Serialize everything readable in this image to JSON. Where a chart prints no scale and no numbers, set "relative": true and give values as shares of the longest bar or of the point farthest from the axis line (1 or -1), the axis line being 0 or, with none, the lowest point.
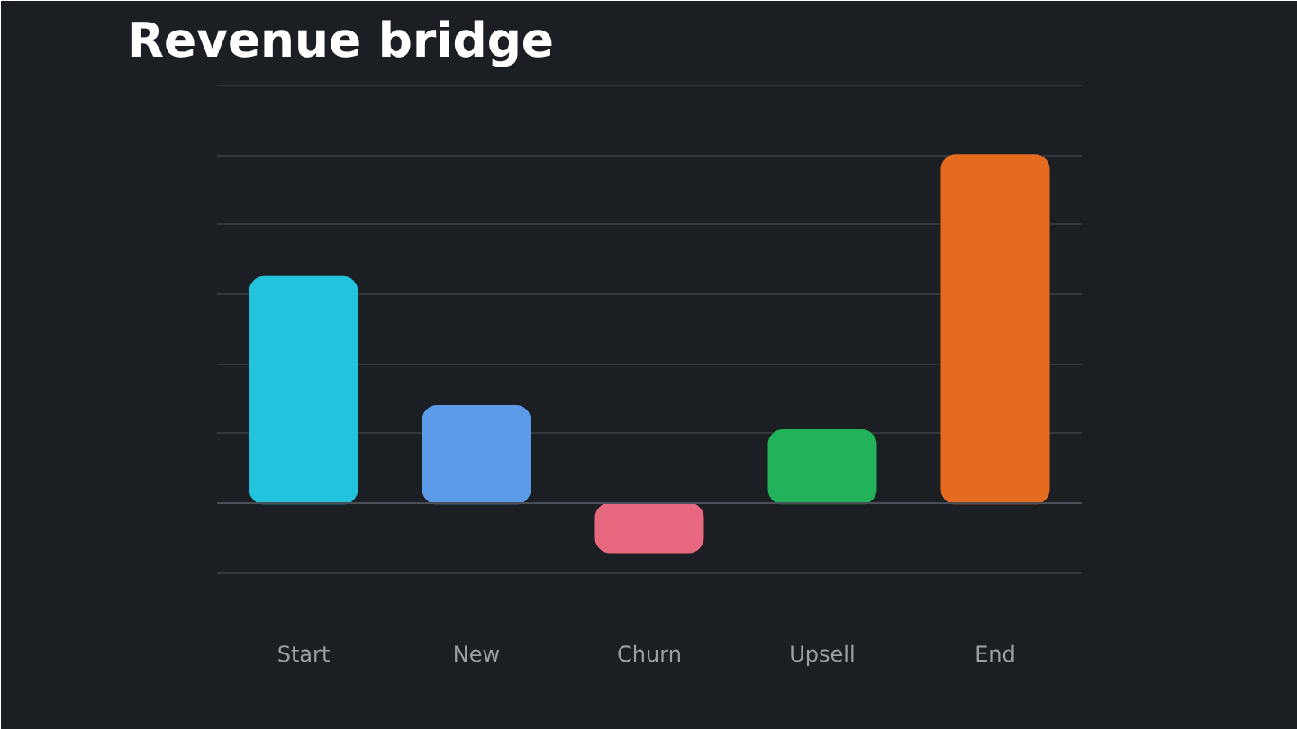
{
  "chart_data": {
    "type": "bar",
    "title": "Revenue bridge",
    "relative": true,
    "grid": "y",
    "categories": [
      "Start",
      "New",
      "Churn",
      "Upsell",
      "End"
    ],
    "values": [
      0.65,
      0.28,
      -0.14,
      0.21,
      1
    ],
    "colors": [
      "#22c3dd",
      "#5b9be8",
      "#e8697f",
      "#22b35a",
      "#e56b1f"
    ]
  }
}
